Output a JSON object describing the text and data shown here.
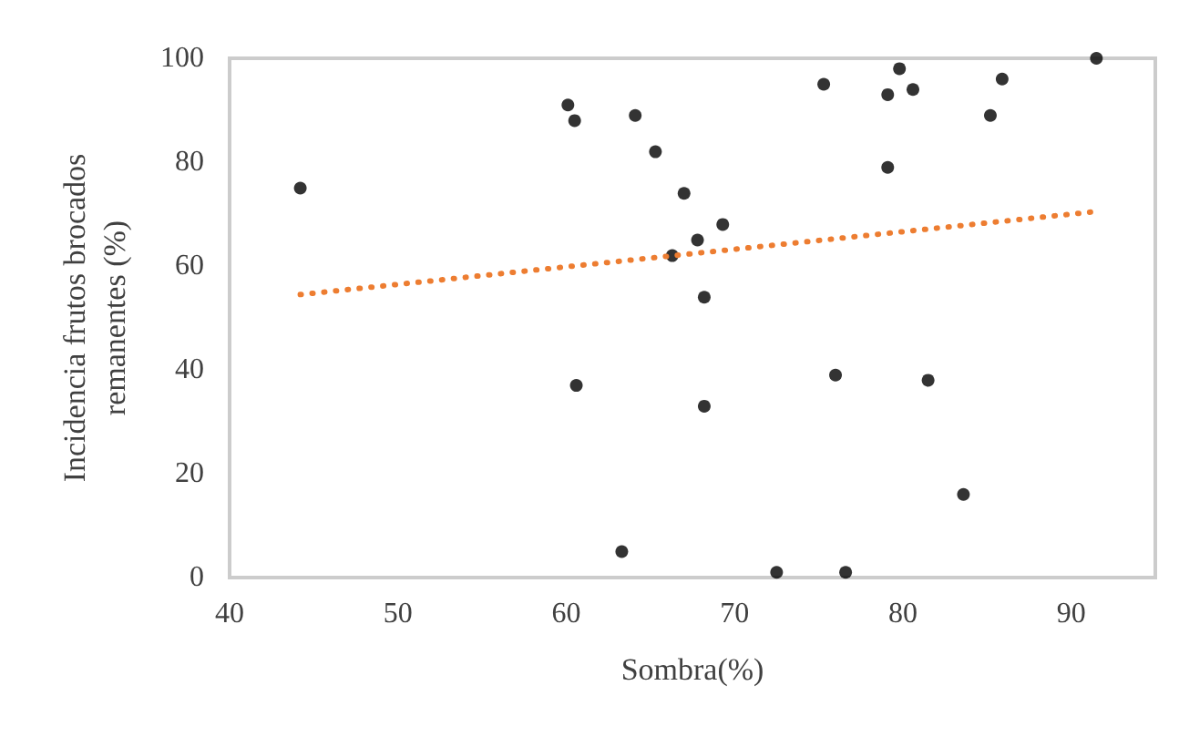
{
  "chart_data": {
    "type": "scatter",
    "xlabel": "Sombra(%)",
    "ylabel": "Incidencia frutos brocados\nremanentes (%)",
    "xlim": [
      40,
      95
    ],
    "xticks": [
      40,
      50,
      60,
      70,
      80,
      90
    ],
    "ylim": [
      0,
      100
    ],
    "yticks": [
      0,
      20,
      40,
      60,
      80,
      100
    ],
    "grid": false,
    "marker": "circle",
    "series": [
      {
        "color": "#000000",
        "x": [
          44.2,
          60.1,
          60.5,
          60.6,
          63.3,
          64.1,
          65.3,
          66.3,
          67,
          67.8,
          68.2,
          68.2,
          69.3,
          72.5,
          75.3,
          76,
          76.6,
          79.1,
          79.1,
          79.8,
          80.6,
          81.5,
          83.6,
          85.2,
          85.9,
          91.5
        ],
        "values": [
          75,
          91,
          88,
          37,
          5,
          89,
          82,
          62,
          74,
          65,
          54,
          33,
          68,
          1,
          95,
          39,
          1,
          79,
          93,
          98,
          94,
          38,
          16,
          89,
          96,
          100
        ]
      },
      {
        "type": "line",
        "color": "#ed7d31",
        "line_style": "dotted",
        "marker": "none",
        "x": [
          44.2,
          91.5
        ],
        "values": [
          54.5,
          70.5
        ]
      }
    ]
  }
}
